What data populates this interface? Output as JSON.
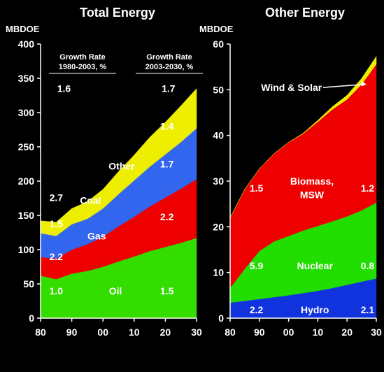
{
  "colors": {
    "background": "#000000",
    "text": "#FFFFFF",
    "oil": "#33DD00",
    "gas": "#EE0000",
    "coal": "#3366EE",
    "other": "#EEEE00",
    "hydro": "#1133DD",
    "nuclear": "#22DD00",
    "biomass": "#EE0000",
    "wind_solar": "#EEEE00"
  },
  "chart_data": [
    {
      "type": "area",
      "stacked": true,
      "title": "Total Energy",
      "ylabel": "MBDOE",
      "xlabel": "",
      "x": [
        1980,
        1985,
        1990,
        1995,
        2000,
        2005,
        2010,
        2015,
        2020,
        2025,
        2030
      ],
      "x_ticks": [
        1980,
        1990,
        2000,
        2010,
        2020,
        2030
      ],
      "x_tick_labels": [
        "80",
        "90",
        "00",
        "10",
        "20",
        "30"
      ],
      "ylim": [
        0,
        400
      ],
      "y_ticks": [
        0,
        50,
        100,
        150,
        200,
        250,
        300,
        350,
        400
      ],
      "y_tick_labels": [
        "0",
        "50",
        "100",
        "150",
        "200",
        "250",
        "300",
        "350",
        "400"
      ],
      "series": [
        {
          "name": "Oil",
          "color_key": "oil",
          "values": [
            62,
            57,
            65,
            69,
            75,
            83,
            90,
            98,
            104,
            110,
            117
          ]
        },
        {
          "name": "Gas",
          "color_key": "gas",
          "values": [
            27,
            30,
            35,
            39,
            44,
            51,
            58,
            65,
            72,
            79,
            86
          ]
        },
        {
          "name": "Coal",
          "color_key": "coal",
          "values": [
            35,
            33,
            37,
            37,
            41,
            47,
            53,
            58,
            63,
            68,
            74
          ]
        },
        {
          "name": "Other",
          "color_key": "other",
          "values": [
            18,
            20,
            23,
            25,
            28,
            33,
            37,
            43,
            47,
            53,
            58
          ]
        }
      ],
      "header_columns": [
        {
          "label_line1": "Growth Rate",
          "label_line2": "1980-2003, %"
        },
        {
          "label_line1": "Growth Rate",
          "label_line2": "2003-2030, %"
        }
      ],
      "totals": [
        {
          "text": "1.6",
          "x": 1987.5,
          "y": 335
        },
        {
          "text": "1.7",
          "x": 2021,
          "y": 335
        }
      ],
      "annotations": [
        {
          "text": "1.4",
          "x": 2020.5,
          "y": 280
        },
        {
          "text": "Other",
          "x": 2006,
          "y": 222
        },
        {
          "text": "1.7",
          "x": 2020.5,
          "y": 225
        },
        {
          "text": "2.7",
          "x": 1985,
          "y": 176
        },
        {
          "text": "Coal",
          "x": 1996,
          "y": 172
        },
        {
          "text": "1.5",
          "x": 1985,
          "y": 138
        },
        {
          "text": "2.2",
          "x": 2020.5,
          "y": 148
        },
        {
          "text": "Gas",
          "x": 1998,
          "y": 120
        },
        {
          "text": "2.2",
          "x": 1985,
          "y": 90
        },
        {
          "text": "1.0",
          "x": 1985,
          "y": 40
        },
        {
          "text": "Oil",
          "x": 2004,
          "y": 40
        },
        {
          "text": "1.5",
          "x": 2020.5,
          "y": 40
        }
      ]
    },
    {
      "type": "area",
      "stacked": true,
      "title": "Other Energy",
      "ylabel": "MBDOE",
      "xlabel": "",
      "x": [
        1980,
        1985,
        1990,
        1995,
        2000,
        2005,
        2010,
        2015,
        2020,
        2025,
        2030
      ],
      "x_ticks": [
        1980,
        1990,
        2000,
        2010,
        2020,
        2030
      ],
      "x_tick_labels": [
        "80",
        "90",
        "00",
        "10",
        "20",
        "30"
      ],
      "ylim": [
        0,
        60
      ],
      "y_ticks": [
        0,
        10,
        20,
        30,
        40,
        50,
        60
      ],
      "y_tick_labels": [
        "0",
        "10",
        "20",
        "30",
        "40",
        "50",
        "60"
      ],
      "series": [
        {
          "name": "Hydro",
          "color_key": "hydro",
          "values": [
            3.4,
            3.8,
            4.2,
            4.6,
            5.0,
            5.5,
            6.0,
            6.6,
            7.3,
            8.0,
            8.7
          ]
        },
        {
          "name": "Nuclear",
          "color_key": "nuclear",
          "values": [
            3.2,
            7.0,
            10.5,
            12.2,
            13.0,
            13.7,
            14.2,
            14.6,
            15.0,
            15.6,
            16.6
          ]
        },
        {
          "name": "Biomass, MSW",
          "color_key": "biomass",
          "values": [
            15.4,
            17.4,
            18.0,
            19.2,
            20.5,
            21.2,
            22.8,
            24.5,
            25.6,
            27.6,
            30.3
          ]
        },
        {
          "name": "Wind & Solar",
          "color_key": "wind_solar",
          "values": [
            0.0,
            0.0,
            0.0,
            0.0,
            0.0,
            0.1,
            0.3,
            0.6,
            0.9,
            1.3,
            1.7
          ]
        }
      ],
      "annotations": [
        {
          "text": "Wind & Solar",
          "x": 2001,
          "y": 50.5,
          "arrow_to": [
            2026.5,
            51.2
          ]
        },
        {
          "text": "1.5",
          "x": 1989,
          "y": 28.5
        },
        {
          "text": "Biomass,",
          "x": 2008,
          "y": 30
        },
        {
          "text": "MSW",
          "x": 2008,
          "y": 27
        },
        {
          "text": "1.2",
          "x": 2027,
          "y": 28.5
        },
        {
          "text": "5.9",
          "x": 1989,
          "y": 11.5
        },
        {
          "text": "Nuclear",
          "x": 2009,
          "y": 11.5
        },
        {
          "text": "0.8",
          "x": 2027,
          "y": 11.5
        },
        {
          "text": "2.2",
          "x": 1989,
          "y": 1.8
        },
        {
          "text": "Hydro",
          "x": 2009,
          "y": 1.8
        },
        {
          "text": "2.1",
          "x": 2027,
          "y": 1.8
        }
      ]
    }
  ]
}
